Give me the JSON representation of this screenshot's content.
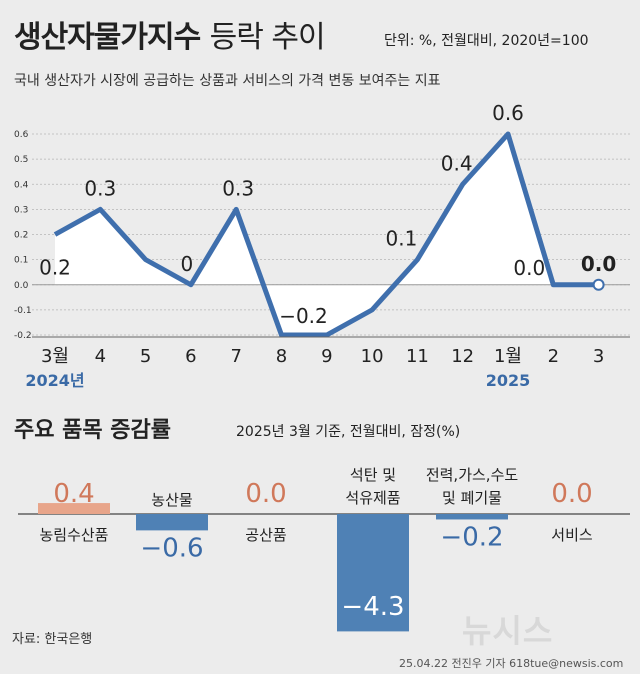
{
  "header": {
    "title_bold": "생산자물가지수",
    "title_light": "등락 추이",
    "unit": "단위: %, 전월대비, 2020년=100",
    "subtitle": "국내 생산자가 시장에 공급하는 상품과 서비스의 가격 변동 보여주는 지표"
  },
  "chart_data": [
    {
      "type": "line",
      "categories": [
        "3월",
        "4",
        "5",
        "6",
        "7",
        "8",
        "9",
        "10",
        "11",
        "12",
        "1월",
        "2",
        "3"
      ],
      "year_labels": [
        {
          "index": 0,
          "text": "2024년"
        },
        {
          "index": 10,
          "text": "2025"
        }
      ],
      "values": [
        0.2,
        0.3,
        0.1,
        0.0,
        0.3,
        -0.2,
        -0.2,
        -0.1,
        0.1,
        0.4,
        0.6,
        0.0,
        0.0
      ],
      "data_labels": [
        {
          "index": 0,
          "text": "0.2"
        },
        {
          "index": 1,
          "text": "0.3"
        },
        {
          "index": 3,
          "text": "0"
        },
        {
          "index": 4,
          "text": "0.3"
        },
        {
          "index": 5,
          "text": "−0.2"
        },
        {
          "index": 8,
          "text": "0.1"
        },
        {
          "index": 9,
          "text": "0.4"
        },
        {
          "index": 10,
          "text": "0.6"
        },
        {
          "index": 11,
          "text": "0.0"
        },
        {
          "index": 12,
          "text": "0.0",
          "highlight": true
        }
      ],
      "yticks": [
        "0.6",
        "0.5",
        "0.4",
        "0.3",
        "0.2",
        "0.1",
        "0.0",
        "-0.1",
        "-0.2"
      ],
      "ylim": [
        -0.2,
        0.6
      ],
      "grid": true,
      "line_color": "#3f6fad"
    },
    {
      "type": "bar",
      "title": "주요 품목 증감률",
      "note": "2025년 3월 기준, 전월대비, 잠정(%)",
      "categories": [
        "농림수산품",
        "농산물",
        "공산품",
        "석탄 및 석유제품",
        "전력,가스,수도 및 폐기물",
        "서비스"
      ],
      "category_lines": [
        [
          "농림수산품"
        ],
        [
          "농산물"
        ],
        [
          "공산품"
        ],
        [
          "석탄 및",
          "석유제품"
        ],
        [
          "전력,가스,수도",
          "및 폐기물"
        ],
        [
          "서비스"
        ]
      ],
      "values": [
        0.4,
        -0.6,
        0.0,
        -4.3,
        -0.2,
        0.0
      ],
      "value_labels": [
        "0.4",
        "−0.6",
        "0.0",
        "−4.3",
        "−0.2",
        "0.0"
      ],
      "colors": {
        "positive": "#e8a58a",
        "negative": "#4f81b5",
        "positive_text": "#d0785a",
        "negative_text": "#3a6aa6"
      }
    }
  ],
  "footer": {
    "source": "자료: 한국은행",
    "credit": "25.04.22 전진우 기자 618tue@newsis.com",
    "logo": "뉴시스"
  }
}
